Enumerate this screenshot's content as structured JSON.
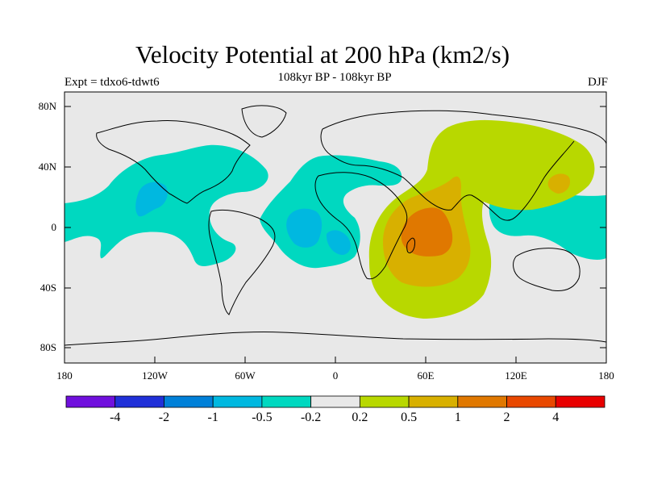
{
  "title": "Velocity Potential at 200 hPa (km2/s)",
  "subtitle": "108kyr BP - 108kyr BP",
  "experiment": "Expt = tdxo6-tdwt6",
  "season": "DJF",
  "axes": {
    "lat_ticks": [
      "80N",
      "40N",
      "0",
      "40S",
      "80S"
    ],
    "lon_ticks": [
      "180",
      "120W",
      "60W",
      "0",
      "60E",
      "120E",
      "180"
    ]
  },
  "colorbar": {
    "labels": [
      "-4",
      "-2",
      "-1",
      "-0.5",
      "-0.2",
      "0.2",
      "0.5",
      "1",
      "2",
      "4"
    ],
    "colors": [
      "#7010dd",
      "#2030d8",
      "#0080d8",
      "#00b8e0",
      "#00d8c0",
      "#e8e8e8",
      "#b8d800",
      "#d8b000",
      "#e07800",
      "#e84800",
      "#e80000"
    ]
  },
  "colors": {
    "background": "#e8e8e8",
    "coast": "#000000"
  }
}
